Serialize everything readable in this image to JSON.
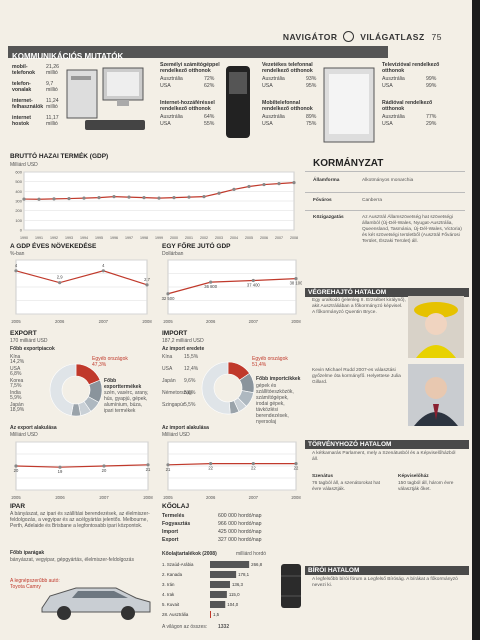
{
  "header": {
    "left": "NAVIGÁTOR",
    "right": "VILÁGATLASZ",
    "page": "75"
  },
  "comm": {
    "title": "KOMMUNIKÁCIÓS MUTATÓK",
    "rows": [
      {
        "label": "mobil-telefonok",
        "value": "21,26 millió"
      },
      {
        "label": "telefon-vonalak",
        "value": "9,7 millió"
      },
      {
        "label": "internet-felhasználók",
        "value": "11,24 millió"
      },
      {
        "label": "internet hostok",
        "value": "11,17 millió"
      }
    ],
    "col2": [
      {
        "title": "Személyi számítógéppel rendelkező otthonok",
        "rows": [
          {
            "k": "Ausztrália",
            "v": "72%"
          },
          {
            "k": "USA",
            "v": "62%"
          }
        ]
      },
      {
        "title": "Internet-hozzáféréssel rendelkező otthonok",
        "rows": [
          {
            "k": "Ausztrália",
            "v": "64%"
          },
          {
            "k": "USA",
            "v": "55%"
          }
        ]
      }
    ],
    "col3": [
      {
        "title": "Vezetékes telefonnal rendelkező otthonok",
        "rows": [
          {
            "k": "Ausztrália",
            "v": "93%"
          },
          {
            "k": "USA",
            "v": "95%"
          }
        ]
      },
      {
        "title": "Mobiltelefonnal rendelkező otthonok",
        "rows": [
          {
            "k": "Ausztrália",
            "v": "89%"
          },
          {
            "k": "USA",
            "v": "75%"
          }
        ]
      }
    ],
    "col4": [
      {
        "title": "Televízióval rendelkező otthonok",
        "rows": [
          {
            "k": "Ausztrália",
            "v": "99%"
          },
          {
            "k": "USA",
            "v": "99%"
          }
        ]
      },
      {
        "title": "Rádióval rendelkező otthonok",
        "rows": [
          {
            "k": "Ausztrália",
            "v": "77%"
          },
          {
            "k": "USA",
            "v": "29%"
          }
        ]
      }
    ]
  },
  "gdp_chart": {
    "title": "BRUTTÓ HAZAI TERMÉK (GDP)",
    "unit": "Milliárd USD"
  },
  "growth_chart": {
    "title": "A GDP ÉVES NÖVEKEDÉSE",
    "unit": "%-ban"
  },
  "percap_chart": {
    "title": "EGY FŐRE JUTÓ GDP",
    "unit": "Dollárban"
  },
  "export": {
    "title": "EXPORT",
    "total": "170 milliárd USD",
    "partners_title": "Főbb exportpiacok",
    "partners": [
      {
        "k": "Kína",
        "v": "14,2%"
      },
      {
        "k": "USA",
        "v": "6,8%"
      },
      {
        "k": "Korea",
        "v": "7,5%"
      },
      {
        "k": "India",
        "v": "5,9%"
      },
      {
        "k": "Japán",
        "v": "18,9%"
      }
    ],
    "other": "Egyéb országok 47,3%",
    "products_title": "Főbb exporttermékek",
    "products": "szén, vasérc, arany, hús, gyapjú, gépek, alumínium, búza, ipari termékek",
    "chart_title": "Az export alakulása",
    "chart_unit": "Milliárd USD"
  },
  "import": {
    "title": "IMPORT",
    "total": "187,2 milliárd USD",
    "partners_title": "Az import eredete",
    "partners": [
      {
        "k": "Kína",
        "v": "15,5%"
      },
      {
        "k": "USA",
        "v": "12,4%"
      },
      {
        "k": "Japán",
        "v": "9,6%"
      },
      {
        "k": "Németország",
        "v": "5,6%"
      },
      {
        "k": "Szingapúr",
        "v": "5,5%"
      }
    ],
    "other": "Egyéb országok 51,4%",
    "products_title": "Főbb importcikkek",
    "products": "gépek és szállítóeszközök, számítógépek, irodai gépek, távközlési berendezések, nyersolaj",
    "chart_title": "Az import alakulása",
    "chart_unit": "Milliárd USD"
  },
  "ipar": {
    "title": "IPAR",
    "text": "A bányászat, az ipari és szállítási berendezések, az élelmiszer-feldolgozás, a vegyipar és az acélgyártás jelentős. Melbourne, Perth, Adelaide és Brisbane a legfontosabb ipari központok.",
    "sub": "Főbb iparágak",
    "sub_text": "bányászat, vegyipar, gépgyártás, élelmiszer-feldolgozás",
    "caption": "A legnépszerűbb autó: Toyota Camry"
  },
  "koolaj": {
    "title": "KŐOLAJ",
    "rows": [
      {
        "k": "Termelés",
        "v": "600 000 hordó/nap"
      },
      {
        "k": "Fogyasztás",
        "v": "966 000 hordó/nap"
      },
      {
        "k": "Import",
        "v": "425 000 hordó/nap"
      },
      {
        "k": "Export",
        "v": "327 000 hordó/nap"
      }
    ],
    "reserves_title": "Kőolajtartalékok (2008)",
    "reserves_unit": "milliárd hordó",
    "reserves": [
      {
        "rank": "1. Szaúd-Arábia",
        "v": "266,8"
      },
      {
        "rank": "2. Kanada",
        "v": "178,1"
      },
      {
        "rank": "3. Irán",
        "v": "136,3"
      },
      {
        "rank": "4. Irak",
        "v": "115,0"
      },
      {
        "rank": "5. Kuvait",
        "v": "104,0"
      },
      {
        "rank": "28. Ausztrália",
        "v": "1,5"
      }
    ],
    "world_label": "A világon az összes:",
    "world_value": "1332"
  },
  "right": {
    "title": "KORMÁNYZAT",
    "rows": [
      {
        "k": "Államforma",
        "v": "Alkotmányos monarchia"
      },
      {
        "k": "Főváros",
        "v": "Canberra"
      },
      {
        "k": "Közigazgatás",
        "v": "Az Ausztrál Államszövetség hat szövetségi államból (Új-Dél-Wales, Nyugat-Ausztrália, Queensland, Tasmánia, Új-Dél-Wales, Victoria) és két szövetségi területből (Ausztrál Fővárosi Terület, Északi Terület) áll."
      }
    ],
    "exec_title": "VÉGREHAJTÓ HATALOM",
    "exec_text1": "Egy uralkodó (jelenleg II. Erzsébet királynő), akit Ausztráliában a főkormányzó képvisel. A főkormányzó Quentin Bryce.",
    "exec_text2": "Kevin Michael Rudd 2007-es választási győzelme óta kormányfő. Helyettese Julia Gillard.",
    "leg_title": "TÖRVÉNYHOZÓ HATALOM",
    "leg_text": "A kétkamarás Parlament, mely a Szenátusból és a Képviselőházból áll.",
    "senate": "Szenátus",
    "senate_text": "76 tagból áll, a szenátorokat hat évre választják.",
    "house": "Képviselőház",
    "house_text": "150 tagból áll, három évre választják őket.",
    "court_title": "BÍRÓI HATALOM",
    "court_text": "A legfelsőbb bírói fórum a Legfelső Bíróság. A bírákat a főkormányzó nevezi ki."
  },
  "chart_data": [
    {
      "type": "line",
      "title": "BRUTTÓ HAZAI TERMÉK (GDP)",
      "ylabel": "Milliárd USD",
      "x": [
        "1990",
        "1991",
        "1992",
        "1993",
        "1994",
        "1995",
        "1996",
        "1997",
        "1998",
        "1999",
        "2000",
        "2001",
        "2002",
        "2003",
        "2004",
        "2005",
        "2006",
        "2007",
        "2008"
      ],
      "values": [
        320,
        318,
        322,
        325,
        330,
        335,
        345,
        340,
        335,
        330,
        335,
        340,
        345,
        380,
        420,
        450,
        470,
        480,
        490
      ],
      "ylim": [
        0,
        600
      ],
      "yticks": [
        "0",
        "100",
        "200",
        "300",
        "400",
        "500",
        "600"
      ]
    },
    {
      "type": "line",
      "title": "A GDP ÉVES NÖVEKEDÉSE",
      "ylabel": "%-ban",
      "x": [
        "2005",
        "2006",
        "2007",
        "2008"
      ],
      "values": [
        4,
        2.9,
        4,
        2.7
      ],
      "ylim": [
        0,
        5
      ]
    },
    {
      "type": "line",
      "title": "EGY FŐRE JUTÓ GDP",
      "ylabel": "Dollárban",
      "x": [
        "2005",
        "2006",
        "2007",
        "2008"
      ],
      "values": [
        32500,
        36800,
        37400,
        38100
      ],
      "labels": [
        "32 500",
        "36 800",
        "37 400",
        "38 100"
      ],
      "ylim": [
        25000,
        45000
      ]
    },
    {
      "type": "pie",
      "title": "Főbb exportpiacok",
      "categories": [
        "Japán",
        "Kína",
        "Korea",
        "USA",
        "India",
        "Egyéb országok"
      ],
      "values": [
        18.9,
        14.2,
        7.5,
        6.8,
        5.9,
        47.3
      ]
    },
    {
      "type": "pie",
      "title": "Az import eredete",
      "categories": [
        "Kína",
        "USA",
        "Japán",
        "Németország",
        "Szingapúr",
        "Egyéb országok"
      ],
      "values": [
        15.5,
        12.4,
        9.6,
        5.6,
        5.5,
        51.4
      ]
    },
    {
      "type": "line",
      "title": "Az export alakulása",
      "ylabel": "Milliárd USD",
      "x": [
        "2005",
        "2006",
        "2007",
        "2008"
      ],
      "values": [
        20,
        19,
        20,
        21
      ]
    },
    {
      "type": "line",
      "title": "Az import alakulása",
      "ylabel": "Milliárd USD",
      "x": [
        "2005",
        "2006",
        "2007",
        "2008"
      ],
      "values": [
        21,
        22,
        22,
        22
      ]
    },
    {
      "type": "bar",
      "title": "Kőolajtartalékok (2008)",
      "categories": [
        "Szaúd-Arábia",
        "Kanada",
        "Irán",
        "Irak",
        "Kuvait",
        "Ausztrália"
      ],
      "values": [
        266.8,
        178.1,
        136.3,
        115.0,
        104.0,
        1.5
      ]
    }
  ],
  "colors": {
    "accent": "#c0392b",
    "dark": "#4a4a4a",
    "pie_light": "#aeb8c0",
    "pie_mid": "#8a949c"
  }
}
